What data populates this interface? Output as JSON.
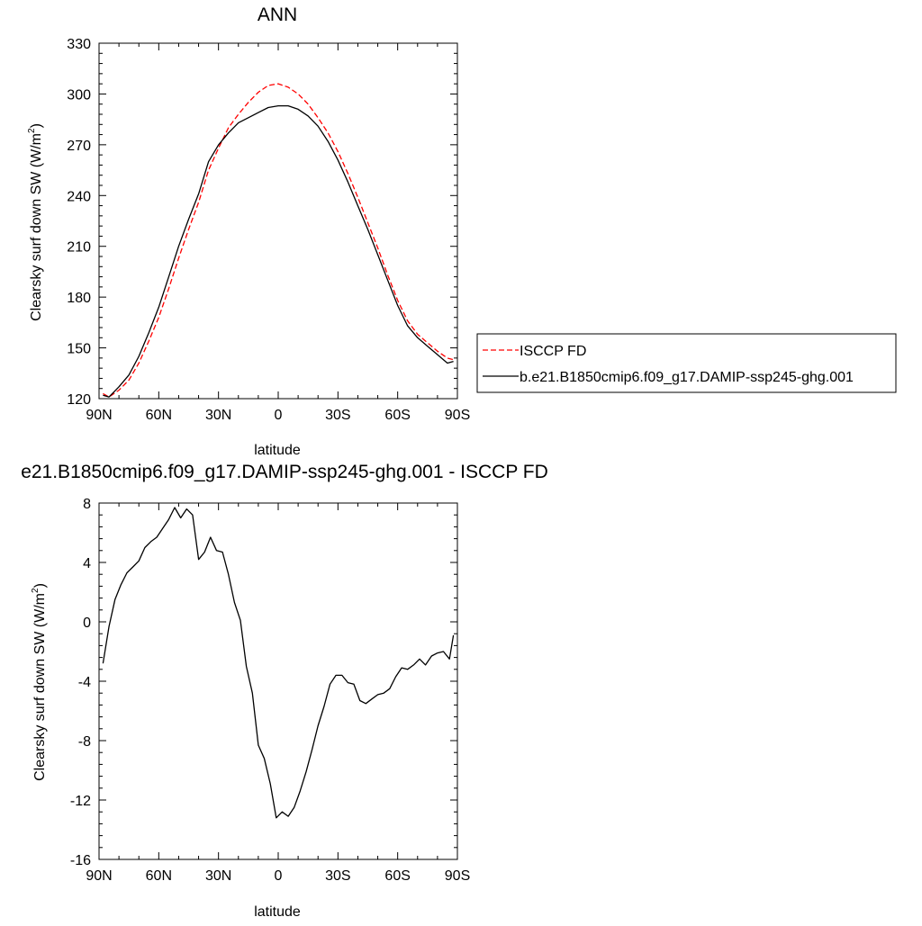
{
  "chart_data": [
    {
      "type": "line",
      "title": "ANN",
      "xlabel": "latitude",
      "ylabel": "Clearsky surf down SW (W/m",
      "ylabel_sup": "2",
      "ylabel_end": ")",
      "xticks": [
        {
          "value": 90,
          "label": "90N"
        },
        {
          "value": 60,
          "label": "60N"
        },
        {
          "value": 30,
          "label": "30N"
        },
        {
          "value": 0,
          "label": "0"
        },
        {
          "value": -30,
          "label": "30S"
        },
        {
          "value": -60,
          "label": "60S"
        },
        {
          "value": -90,
          "label": "90S"
        }
      ],
      "xlim": [
        90,
        -90
      ],
      "ylim": [
        120,
        330
      ],
      "yticks": [
        120,
        150,
        180,
        210,
        240,
        270,
        300,
        330
      ],
      "legend_placement": "right",
      "series": [
        {
          "name": "ISCCP FD",
          "color": "#ff0000",
          "dash": true,
          "x": [
            88,
            85,
            80,
            75,
            70,
            65,
            60,
            55,
            50,
            45,
            40,
            35,
            30,
            25,
            20,
            15,
            10,
            5,
            0,
            -5,
            -10,
            -15,
            -20,
            -25,
            -30,
            -35,
            -40,
            -45,
            -50,
            -55,
            -60,
            -65,
            -70,
            -75,
            -80,
            -85,
            -88
          ],
          "y": [
            123,
            121,
            125,
            131,
            141,
            154,
            168,
            185,
            203,
            220,
            236,
            255,
            268,
            280,
            288,
            295,
            301,
            305,
            306,
            304,
            300,
            294,
            286,
            277,
            266,
            253,
            239,
            224,
            209,
            193,
            178,
            166,
            158,
            153,
            148,
            144,
            143
          ]
        },
        {
          "name": "b.e21.B1850cmip6.f09_g17.DAMIP-ssp245-ghg.001",
          "color": "#000000",
          "dash": false,
          "x": [
            88,
            85,
            80,
            75,
            70,
            65,
            60,
            55,
            50,
            45,
            40,
            35,
            30,
            25,
            20,
            15,
            10,
            5,
            0,
            -5,
            -10,
            -15,
            -20,
            -25,
            -30,
            -35,
            -40,
            -45,
            -50,
            -55,
            -60,
            -65,
            -70,
            -75,
            -80,
            -85,
            -88
          ],
          "y": [
            122,
            121,
            127,
            134,
            145,
            159,
            174,
            192,
            210,
            226,
            241,
            260,
            270,
            277,
            283,
            286,
            289,
            292,
            293,
            293,
            291,
            287,
            281,
            272,
            261,
            248,
            234,
            220,
            205,
            190,
            175,
            163,
            156,
            151,
            146,
            141,
            142
          ]
        }
      ]
    },
    {
      "type": "line",
      "title": "e21.B1850cmip6.f09_g17.DAMIP-ssp245-ghg.001 - ISCCP FD",
      "xlabel": "latitude",
      "ylabel": "Clearsky surf down SW (W/m",
      "ylabel_sup": "2",
      "ylabel_end": ")",
      "xticks": [
        {
          "value": 90,
          "label": "90N"
        },
        {
          "value": 60,
          "label": "60N"
        },
        {
          "value": 30,
          "label": "30N"
        },
        {
          "value": 0,
          "label": "0"
        },
        {
          "value": -30,
          "label": "30S"
        },
        {
          "value": -60,
          "label": "60S"
        },
        {
          "value": -90,
          "label": "90S"
        }
      ],
      "xlim": [
        90,
        -90
      ],
      "ylim": [
        -16,
        8
      ],
      "yticks": [
        -16,
        -12,
        -8,
        -4,
        0,
        4,
        8
      ],
      "series": [
        {
          "color": "#000000",
          "dash": false,
          "x": [
            88,
            85,
            82,
            79,
            76,
            73,
            70,
            67,
            64,
            61,
            58,
            55,
            52,
            49,
            46,
            43,
            40,
            37,
            34,
            31,
            28,
            25,
            22,
            19,
            16,
            13,
            10,
            7,
            4,
            1,
            -2,
            -5,
            -8,
            -11,
            -14,
            -17,
            -20,
            -23,
            -26,
            -29,
            -32,
            -35,
            -38,
            -41,
            -44,
            -47,
            -50,
            -53,
            -56,
            -59,
            -62,
            -65,
            -68,
            -71,
            -74,
            -77,
            -80,
            -83,
            -86,
            -88
          ],
          "y": [
            -2.8,
            -0.3,
            1.5,
            2.5,
            3.3,
            3.7,
            4.1,
            5.0,
            5.4,
            5.7,
            6.3,
            6.9,
            7.7,
            7.0,
            7.6,
            7.2,
            4.2,
            4.7,
            5.7,
            4.8,
            4.7,
            3.2,
            1.3,
            0.1,
            -3.0,
            -4.8,
            -8.3,
            -9.2,
            -10.9,
            -13.2,
            -12.8,
            -13.1,
            -12.5,
            -11.4,
            -10.1,
            -8.6,
            -7.0,
            -5.7,
            -4.2,
            -3.6,
            -3.6,
            -4.1,
            -4.2,
            -5.3,
            -5.5,
            -5.2,
            -4.9,
            -4.8,
            -4.5,
            -3.7,
            -3.1,
            -3.2,
            -2.9,
            -2.5,
            -2.9,
            -2.3,
            -2.1,
            -2.0,
            -2.5,
            -0.9
          ]
        }
      ]
    }
  ]
}
